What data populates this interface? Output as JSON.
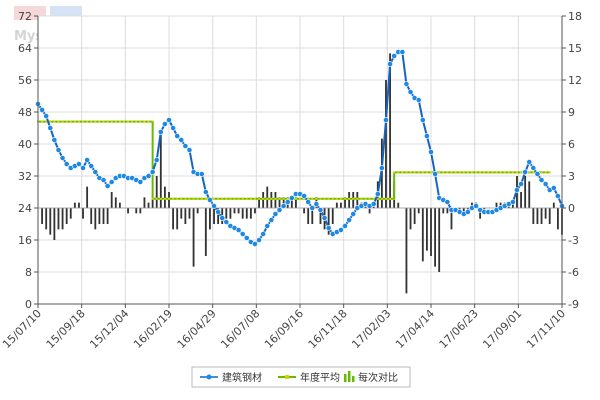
{
  "watermark": {
    "text": "Mysteel.com"
  },
  "colors": {
    "price_line": "#1565c0",
    "price_marker": "#1e88e5",
    "average_line": "#66bb00",
    "average_marker": "#d4d400",
    "bars": "#333333",
    "grid": "#dcdcdc",
    "axis": "#555555"
  },
  "chart_data": {
    "type": "line",
    "x_tick_labels": [
      "15/07/10",
      "15/09/18",
      "15/12/04",
      "16/02/19",
      "16/04/29",
      "16/07/08",
      "16/09/16",
      "16/11/18",
      "17/02/03",
      "17/04/14",
      "17/06/23",
      "17/09/01",
      "17/11/10"
    ],
    "left_axis": {
      "ylim": [
        0,
        72
      ],
      "ticks": [
        0,
        8,
        16,
        24,
        32,
        40,
        48,
        56,
        64,
        72
      ]
    },
    "right_axis": {
      "ylim": [
        -9,
        18
      ],
      "ticks": [
        -9,
        -6,
        -3,
        0,
        3,
        6,
        9,
        12,
        15,
        18
      ]
    },
    "grid": true,
    "legend": {
      "placement": "bottom-center"
    },
    "series": [
      {
        "name": "建筑钢材",
        "axis": "left",
        "kind": "line-markers",
        "values": [
          50,
          48.5,
          47,
          44,
          41,
          38.5,
          36.5,
          35,
          34,
          34.5,
          35,
          34,
          36,
          34.5,
          33,
          31.5,
          31,
          29.5,
          30.5,
          31.5,
          32,
          32,
          31.5,
          31.5,
          31,
          30.5,
          31.5,
          32,
          33,
          36,
          43,
          45,
          46,
          44,
          42,
          41,
          39.5,
          38.5,
          33,
          32.5,
          32.5,
          28,
          26,
          24.5,
          23,
          21.5,
          20.5,
          19.5,
          19,
          18.5,
          17.5,
          16.5,
          15.5,
          15,
          16,
          17.5,
          19.5,
          21,
          22.5,
          23.5,
          24.5,
          25.5,
          26.5,
          27.5,
          27.5,
          27,
          25.5,
          24,
          25,
          23.5,
          21.5,
          19,
          17.5,
          18,
          18.5,
          19.5,
          21,
          22.5,
          24,
          24.5,
          25,
          24.5,
          25,
          27.5,
          34,
          46,
          60,
          62,
          63,
          63,
          55,
          53,
          51.5,
          51,
          46,
          42,
          38,
          32.5,
          26.5,
          26,
          25.5,
          23.5,
          23.5,
          23,
          22.5,
          23,
          24,
          24.5,
          23.5,
          23,
          23,
          23,
          23.5,
          24,
          24.5,
          25,
          25.5,
          28.5,
          30,
          33,
          35.5,
          34,
          32.5,
          31,
          30,
          28.5,
          29,
          27,
          24.5
        ]
      },
      {
        "name": "年度平均",
        "axis": "left",
        "kind": "step",
        "segments": [
          {
            "from_index": 0,
            "to_index": 28,
            "value": 45.6
          },
          {
            "from_index": 28,
            "to_index": 87,
            "value": 26.3
          },
          {
            "from_index": 87,
            "to_index": 125,
            "value": 32.9
          }
        ]
      },
      {
        "name": "每次对比",
        "axis": "right",
        "kind": "bar",
        "values": [
          0,
          -1.5,
          -2,
          -2.5,
          -3,
          -2,
          -2,
          -1.5,
          -1,
          0.5,
          0.5,
          -1,
          2,
          -1.5,
          -2,
          -1.5,
          -1.5,
          -1.5,
          1.5,
          1,
          0.5,
          0,
          -0.5,
          0,
          -0.5,
          -0.5,
          1,
          0.5,
          1,
          3,
          7,
          2,
          1.5,
          -2,
          -2,
          -1,
          -1.5,
          -1,
          -5.5,
          -0.5,
          0,
          -4.5,
          -2,
          -1.5,
          -1.5,
          -1.5,
          -1,
          -1,
          -0.5,
          -0.5,
          -1,
          -1,
          -1,
          -0.5,
          1,
          1.5,
          2,
          1.5,
          1.5,
          1,
          1,
          1,
          1,
          1,
          0,
          -0.5,
          -1.5,
          -1.5,
          1,
          -1.5,
          -2,
          -2.5,
          -1.5,
          0.5,
          0.5,
          1,
          1.5,
          1.5,
          1.5,
          0.5,
          0.5,
          -0.5,
          0.5,
          2.5,
          6.5,
          12,
          14.5,
          2.5,
          0.5,
          0,
          -8,
          -2,
          -1.5,
          -0.5,
          -5,
          -4,
          -4.5,
          -5.5,
          -6,
          -0.5,
          -0.5,
          -2,
          0,
          -0.5,
          -0.5,
          -0.5,
          0.5,
          0.5,
          -1,
          -0.5,
          0,
          0,
          0.5,
          0.5,
          0.5,
          0.5,
          0.5,
          3,
          1.5,
          3,
          2.5,
          -1.5,
          -1.5,
          -1.5,
          -1,
          -1.5,
          0.5,
          -2,
          -2.5
        ]
      }
    ]
  }
}
